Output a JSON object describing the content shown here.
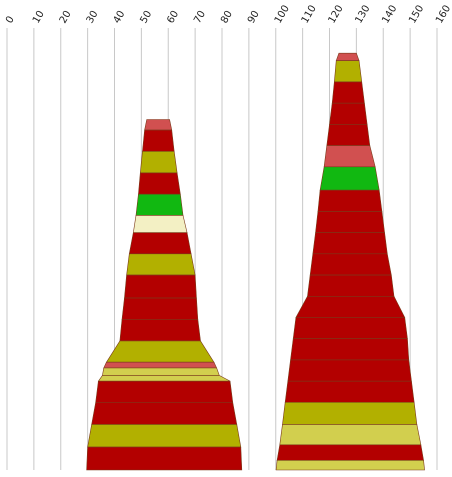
{
  "chart_data": {
    "type": "stacked-trapezoid-columns",
    "title": "",
    "xlabel": "",
    "ylabel": "",
    "xlim": [
      0,
      160
    ],
    "x_ticks": [
      0,
      10,
      20,
      30,
      40,
      50,
      60,
      70,
      80,
      90,
      100,
      110,
      120,
      130,
      140,
      150,
      160
    ],
    "grid": true,
    "colors": {
      "dark-red": "#b30000",
      "light-red": "#d15050",
      "olive": "#b2b000",
      "light-olive": "#d2cf4e",
      "green": "#11b811",
      "cream": "#f3f0c4"
    },
    "columns": [
      {
        "segments": [
          {
            "color": "light-red",
            "x_left": 52.0,
            "x_right": 60.5,
            "y_top": 0.793,
            "y_bottom": 0.769
          },
          {
            "color": "dark-red",
            "x_left": 51.2,
            "x_right": 61.3,
            "y_top": 0.769,
            "y_bottom": 0.721
          },
          {
            "color": "olive",
            "x_left": 50.4,
            "x_right": 62.2,
            "y_top": 0.721,
            "y_bottom": 0.672
          },
          {
            "color": "dark-red",
            "x_left": 49.6,
            "x_right": 63.3,
            "y_top": 0.672,
            "y_bottom": 0.624
          },
          {
            "color": "green",
            "x_left": 48.9,
            "x_right": 64.5,
            "y_top": 0.624,
            "y_bottom": 0.576
          },
          {
            "color": "cream",
            "x_left": 48.0,
            "x_right": 65.5,
            "y_top": 0.576,
            "y_bottom": 0.537
          },
          {
            "color": "dark-red",
            "x_left": 47.0,
            "x_right": 67.0,
            "y_top": 0.537,
            "y_bottom": 0.489
          },
          {
            "color": "olive",
            "x_left": 45.5,
            "x_right": 68.5,
            "y_top": 0.489,
            "y_bottom": 0.441
          },
          {
            "color": "dark-red",
            "x_left": 44.5,
            "x_right": 70.0,
            "y_top": 0.441,
            "y_bottom": 0.389
          },
          {
            "color": "dark-red",
            "x_left": 43.7,
            "x_right": 70.5,
            "y_top": 0.389,
            "y_bottom": 0.341
          },
          {
            "color": "dark-red",
            "x_left": 42.8,
            "x_right": 71.0,
            "y_top": 0.341,
            "y_bottom": 0.292
          },
          {
            "color": "olive",
            "x_left": 42.0,
            "x_right": 72.0,
            "y_top": 0.292,
            "y_bottom": 0.244
          },
          {
            "color": "light-red",
            "x_left": 37.0,
            "x_right": 77.0,
            "y_top": 0.244,
            "y_bottom": 0.231
          },
          {
            "color": "light-olive",
            "x_left": 36.0,
            "x_right": 78.0,
            "y_top": 0.231,
            "y_bottom": 0.214
          },
          {
            "color": "light-olive",
            "x_left": 35.5,
            "x_right": 79.0,
            "y_top": 0.214,
            "y_bottom": 0.201
          },
          {
            "color": "dark-red",
            "x_left": 34.0,
            "x_right": 83.0,
            "y_top": 0.201,
            "y_bottom": 0.153
          },
          {
            "color": "dark-red",
            "x_left": 33.0,
            "x_right": 84.0,
            "y_top": 0.153,
            "y_bottom": 0.103
          },
          {
            "color": "olive",
            "x_left": 31.5,
            "x_right": 85.5,
            "y_top": 0.103,
            "y_bottom": 0.052
          },
          {
            "color": "dark-red",
            "x_left": 30.0,
            "x_right": 87.0,
            "y_top": 0.052,
            "y_bottom": 0.0
          }
        ]
      },
      {
        "segments": [
          {
            "color": "light-red",
            "x_left": 123.5,
            "x_right": 130.0,
            "y_top": 0.943,
            "y_bottom": 0.926
          },
          {
            "color": "olive",
            "x_left": 122.5,
            "x_right": 131.0,
            "y_top": 0.926,
            "y_bottom": 0.878
          },
          {
            "color": "dark-red",
            "x_left": 121.8,
            "x_right": 132.0,
            "y_top": 0.878,
            "y_bottom": 0.83
          },
          {
            "color": "dark-red",
            "x_left": 121.0,
            "x_right": 133.0,
            "y_top": 0.83,
            "y_bottom": 0.782
          },
          {
            "color": "dark-red",
            "x_left": 120.0,
            "x_right": 134.0,
            "y_top": 0.782,
            "y_bottom": 0.734
          },
          {
            "color": "light-red",
            "x_left": 119.0,
            "x_right": 135.0,
            "y_top": 0.734,
            "y_bottom": 0.686
          },
          {
            "color": "green",
            "x_left": 118.0,
            "x_right": 137.0,
            "y_top": 0.686,
            "y_bottom": 0.633
          },
          {
            "color": "dark-red",
            "x_left": 116.5,
            "x_right": 138.5,
            "y_top": 0.633,
            "y_bottom": 0.585
          },
          {
            "color": "dark-red",
            "x_left": 115.7,
            "x_right": 139.5,
            "y_top": 0.585,
            "y_bottom": 0.537
          },
          {
            "color": "dark-red",
            "x_left": 114.8,
            "x_right": 140.5,
            "y_top": 0.537,
            "y_bottom": 0.489
          },
          {
            "color": "dark-red",
            "x_left": 113.8,
            "x_right": 141.5,
            "y_top": 0.489,
            "y_bottom": 0.441
          },
          {
            "color": "dark-red",
            "x_left": 112.8,
            "x_right": 143.0,
            "y_top": 0.441,
            "y_bottom": 0.393
          },
          {
            "color": "dark-red",
            "x_left": 111.8,
            "x_right": 144.0,
            "y_top": 0.393,
            "y_bottom": 0.345
          },
          {
            "color": "dark-red",
            "x_left": 107.5,
            "x_right": 148.0,
            "y_top": 0.345,
            "y_bottom": 0.297
          },
          {
            "color": "dark-red",
            "x_left": 106.5,
            "x_right": 149.0,
            "y_top": 0.297,
            "y_bottom": 0.249
          },
          {
            "color": "dark-red",
            "x_left": 105.5,
            "x_right": 149.5,
            "y_top": 0.249,
            "y_bottom": 0.201
          },
          {
            "color": "dark-red",
            "x_left": 104.5,
            "x_right": 150.5,
            "y_top": 0.201,
            "y_bottom": 0.153
          },
          {
            "color": "olive",
            "x_left": 103.5,
            "x_right": 151.5,
            "y_top": 0.153,
            "y_bottom": 0.103
          },
          {
            "color": "light-olive",
            "x_left": 102.5,
            "x_right": 152.5,
            "y_top": 0.103,
            "y_bottom": 0.057
          },
          {
            "color": "dark-red",
            "x_left": 101.5,
            "x_right": 154.0,
            "y_top": 0.057,
            "y_bottom": 0.022
          },
          {
            "color": "light-olive",
            "x_left": 100.5,
            "x_right": 155.0,
            "y_top": 0.022,
            "y_bottom": 0.0
          }
        ]
      }
    ]
  }
}
